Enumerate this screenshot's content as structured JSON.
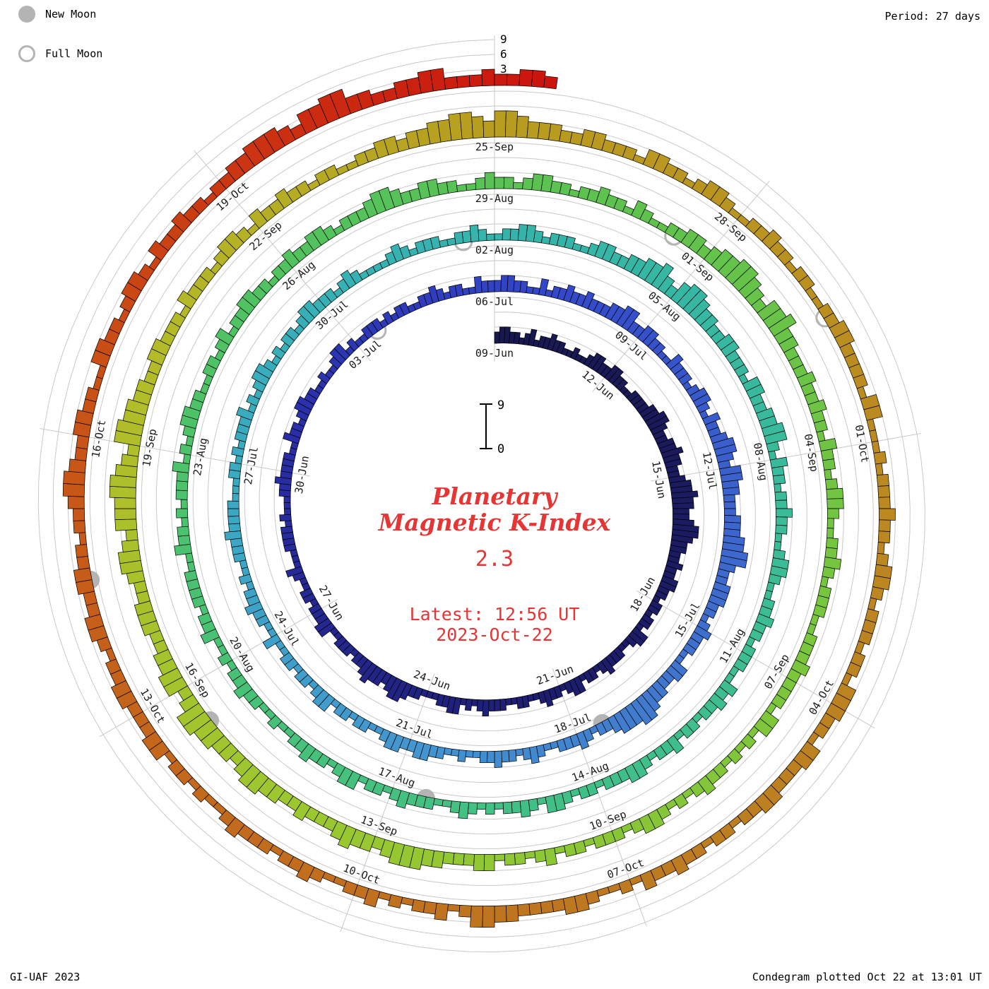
{
  "meta": {
    "legend": {
      "new_moon": "New Moon",
      "full_moon": "Full Moon"
    },
    "period_label": "Period: 27 days",
    "credit": "GI-UAF 2023",
    "footer": "Condegram plotted Oct 22 at 13:01 UT",
    "title_line1": "Planetary",
    "title_line2": "Magnetic K-Index",
    "current_value": "2.3",
    "latest_line1": "Latest: 12:56 UT",
    "latest_line2": "2023-Oct-22",
    "scale_ticks": [
      "3",
      "6",
      "9"
    ],
    "inner_scale": {
      "top": "9",
      "bottom": "0"
    },
    "colors": {
      "accent_red": "#e63535",
      "grid": "#c9c9c9",
      "moon": "#b4b4b4",
      "bar_outline": "#000000",
      "label_text": "#1a1a1a"
    }
  },
  "chart_data": {
    "type": "spiral_bar",
    "title": "Planetary Magnetic K-Index",
    "subtitle_latest": "Latest: 12:56 UT 2023-Oct-22",
    "current_k_value": 2.3,
    "start_date": "2023-06-09",
    "end_date": "2023-10-22",
    "period_days": 27,
    "samples_per_day": 8,
    "k_scale": [
      0,
      9
    ],
    "k_scale_gridlines": [
      3,
      6,
      9
    ],
    "direction": "clockwise-from-top",
    "daily_k_values": [
      "23322123",
      "12232211",
      "21123322",
      "33221122",
      "22334432",
      "23343322",
      "34454433",
      "45543322",
      "32233221",
      "22122133",
      "21122232",
      "12213321",
      "22321122",
      "11222321",
      "21332211",
      "12234432",
      "33432212",
      "22113322",
      "21221123",
      "11122221",
      "21112232",
      "22211322",
      "12332211",
      "21123312",
      "11222121",
      "22112232",
      "12211322",
      "23322113",
      "12232232",
      "22334422",
      "33221132",
      "22123321",
      "32234432",
      "44332223",
      "33445532",
      "23332212",
      "32221133",
      "22334554",
      "44322123",
      "22211232",
      "12232211",
      "21122332",
      "23321122",
      "12213321",
      "22122113",
      "11223221",
      "21122232",
      "22211122",
      "12122231",
      "21233212",
      "12212332",
      "22123211",
      "11232122",
      "21122321",
      "12233212",
      "22112332",
      "23344532",
      "45543322",
      "33222133",
      "22334421",
      "32212232",
      "21123321",
      "12232212",
      "22113232",
      "21221322",
      "12332221",
      "22123312",
      "32212123",
      "21122232",
      "12213321",
      "22322112",
      "11223221",
      "21132212",
      "22211322",
      "12122231",
      "21233221",
      "12212312",
      "23322122",
      "32233212",
      "22344322",
      "33221123",
      "22123322",
      "12232213",
      "21122332",
      "34455432",
      "44533222",
      "32232213",
      "22123321",
      "12232122",
      "21122232",
      "22213312",
      "12122321",
      "21233212",
      "22122132",
      "12213322",
      "23344432",
      "33432223",
      "22334432",
      "33445532",
      "44332233",
      "32234432",
      "44455432",
      "55443322",
      "33222132",
      "22123321",
      "32232212",
      "21122332",
      "33445543",
      "55433322",
      "33222133",
      "22123321",
      "12232212",
      "21122332",
      "22213311",
      "12122232",
      "21233212",
      "22122133",
      "32213322",
      "23322122",
      "12232231",
      "21123322",
      "22334421",
      "32212132",
      "21123221",
      "22232112",
      "12213322",
      "23322123",
      "32233221",
      "22344322",
      "33221133",
      "22123321",
      "32232212",
      "23344432",
      "44553322",
      "33442223",
      "22332"
    ],
    "date_labels": [
      "09-Jun",
      "12-Jun",
      "15-Jun",
      "18-Jun",
      "21-Jun",
      "24-Jun",
      "27-Jun",
      "30-Jun",
      "03-Jul",
      "06-Jul",
      "09-Jul",
      "12-Jul",
      "15-Jul",
      "18-Jul",
      "21-Jul",
      "24-Jul",
      "27-Jul",
      "30-Jul",
      "02-Aug",
      "05-Aug",
      "08-Aug",
      "11-Aug",
      "14-Aug",
      "17-Aug",
      "20-Aug",
      "23-Aug",
      "26-Aug",
      "29-Aug",
      "01-Sep",
      "04-Sep",
      "07-Sep",
      "10-Sep",
      "13-Sep",
      "16-Sep",
      "19-Sep",
      "22-Sep",
      "25-Sep",
      "28-Sep",
      "01-Oct",
      "04-Oct",
      "07-Oct",
      "10-Oct",
      "13-Oct",
      "16-Oct",
      "19-Oct"
    ],
    "date_label_step_days": 3,
    "moon_events": [
      {
        "day": 24,
        "type": "full"
      },
      {
        "day": 38,
        "type": "new"
      },
      {
        "day": 53,
        "type": "full"
      },
      {
        "day": 68,
        "type": "new"
      },
      {
        "day": 83,
        "type": "full"
      },
      {
        "day": 98,
        "type": "new"
      },
      {
        "day": 112,
        "type": "full"
      },
      {
        "day": 127,
        "type": "new"
      }
    ],
    "color_stops": [
      {
        "day": 0,
        "color": "#18184f"
      },
      {
        "day": 12,
        "color": "#1d1d6e"
      },
      {
        "day": 22,
        "color": "#2a2fa8"
      },
      {
        "day": 28,
        "color": "#3347c9"
      },
      {
        "day": 36,
        "color": "#3f6fce"
      },
      {
        "day": 42,
        "color": "#4396cf"
      },
      {
        "day": 47,
        "color": "#3ba8c4"
      },
      {
        "day": 52,
        "color": "#36b2b2"
      },
      {
        "day": 56,
        "color": "#35b6a6"
      },
      {
        "day": 63,
        "color": "#3dbd92"
      },
      {
        "day": 70,
        "color": "#46c17d"
      },
      {
        "day": 77,
        "color": "#4fc263"
      },
      {
        "day": 83,
        "color": "#5fc24d"
      },
      {
        "day": 90,
        "color": "#7cc63c"
      },
      {
        "day": 97,
        "color": "#9cc72f"
      },
      {
        "day": 103,
        "color": "#b3bc28"
      },
      {
        "day": 108,
        "color": "#b89d1f"
      },
      {
        "day": 114,
        "color": "#bb8a21"
      },
      {
        "day": 120,
        "color": "#bd7a21"
      },
      {
        "day": 126,
        "color": "#c4651b"
      },
      {
        "day": 130,
        "color": "#c94e15"
      },
      {
        "day": 133,
        "color": "#cb2d11"
      },
      {
        "day": 136,
        "color": "#cc100e"
      }
    ]
  }
}
